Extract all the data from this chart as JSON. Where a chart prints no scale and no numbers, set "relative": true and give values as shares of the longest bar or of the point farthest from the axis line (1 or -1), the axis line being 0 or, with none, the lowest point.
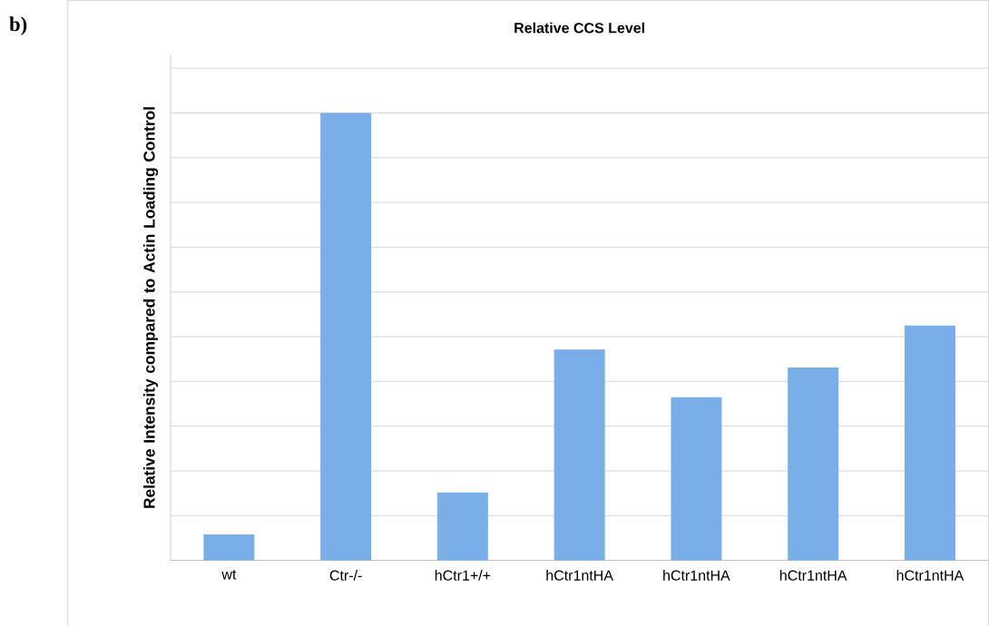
{
  "chart_data": {
    "type": "bar",
    "title": "Relative CCS Level",
    "ylabel": "Relative Intensity compared to Actin Loading Control",
    "annotations": [
      "b)"
    ],
    "categories": [
      "wt",
      "Ctr-/-",
      "hCtr1+/+",
      "hCtr1ntHA",
      "hCtr1ntHA",
      "hCtr1ntHA",
      "hCtr1ntHA"
    ],
    "values": [
      0.058,
      1,
      0.152,
      0.471,
      0.365,
      0.431,
      0.525
    ],
    "color": "#7aaee8",
    "relative": true,
    "grid": "y"
  }
}
